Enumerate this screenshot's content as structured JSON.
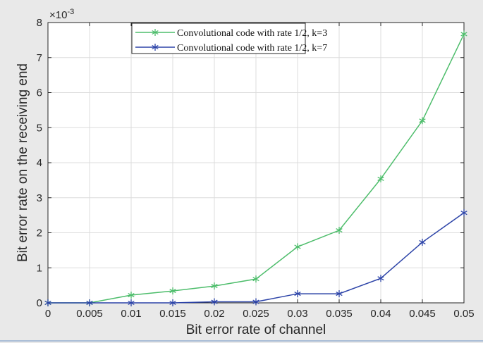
{
  "chart_data": {
    "type": "line",
    "title": "",
    "xlabel": "Bit error rate of channel",
    "ylabel": "Bit error rate on the receiving end",
    "y_exponent_label": "×10",
    "y_exponent_power": "-3",
    "xlim": [
      0,
      0.05
    ],
    "ylim": [
      0,
      8
    ],
    "grid": true,
    "legend_placement": "top-center",
    "x": [
      0,
      0.005,
      0.01,
      0.015,
      0.02,
      0.025,
      0.03,
      0.035,
      0.04,
      0.045,
      0.05
    ],
    "x_tick_labels": [
      "0",
      "0.005",
      "0.01",
      "0.015",
      "0.02",
      "0.025",
      "0.03",
      "0.035",
      "0.04",
      "0.045",
      "0.05"
    ],
    "y_ticks": [
      0,
      1,
      2,
      3,
      4,
      5,
      6,
      7,
      8
    ],
    "y_tick_labels": [
      "0",
      "1",
      "2",
      "3",
      "4",
      "5",
      "6",
      "7",
      "8"
    ],
    "series": [
      {
        "name": "Convolutional code with rate 1/2, k=3",
        "color": "#4dbd6b",
        "values": [
          0,
          0,
          0.22,
          0.34,
          0.48,
          0.68,
          1.6,
          2.07,
          3.54,
          5.2,
          7.67
        ]
      },
      {
        "name": "Convolutional code with rate 1/2, k=7",
        "color": "#2d44a8",
        "values": [
          0,
          0,
          0,
          0,
          0.03,
          0.03,
          0.26,
          0.26,
          0.7,
          1.73,
          2.57
        ]
      }
    ]
  }
}
